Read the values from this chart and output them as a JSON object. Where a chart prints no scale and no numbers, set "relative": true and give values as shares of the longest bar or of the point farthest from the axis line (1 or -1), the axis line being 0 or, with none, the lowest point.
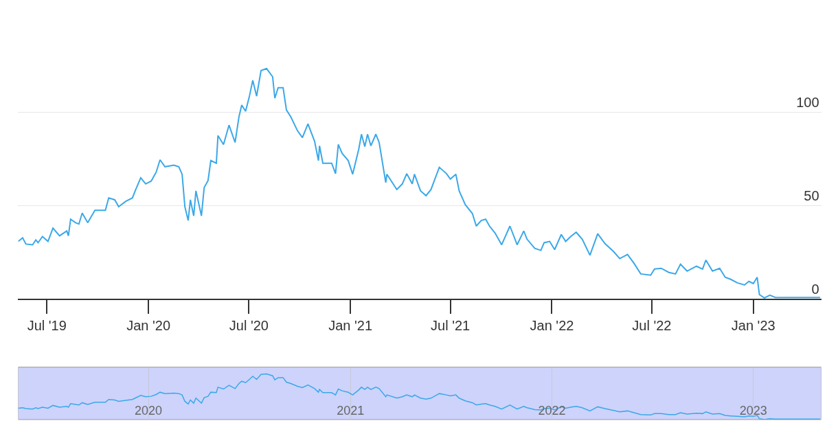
{
  "chart_data": [
    {
      "type": "line",
      "x": [
        "2019-05-10",
        "2019-05-18",
        "2019-05-24",
        "2019-06-05",
        "2019-06-11",
        "2019-06-15",
        "2019-06-23",
        "2019-07-03",
        "2019-07-12",
        "2019-07-24",
        "2019-08-06",
        "2019-08-09",
        "2019-08-13",
        "2019-08-22",
        "2019-08-28",
        "2019-09-03",
        "2019-09-13",
        "2019-09-26",
        "2019-10-15",
        "2019-10-21",
        "2019-11-01",
        "2019-11-08",
        "2019-11-21",
        "2019-12-03",
        "2019-12-08",
        "2019-12-18",
        "2019-12-27",
        "2020-01-06",
        "2020-01-15",
        "2020-01-22",
        "2020-01-31",
        "2020-02-16",
        "2020-02-25",
        "2020-03-02",
        "2020-03-07",
        "2020-03-13",
        "2020-03-17",
        "2020-03-23",
        "2020-03-27",
        "2020-04-06",
        "2020-04-11",
        "2020-04-18",
        "2020-04-23",
        "2020-05-03",
        "2020-05-06",
        "2020-05-16",
        "2020-05-26",
        "2020-06-06",
        "2020-06-13",
        "2020-06-18",
        "2020-06-25",
        "2020-07-02",
        "2020-07-08",
        "2020-07-15",
        "2020-07-23",
        "2020-08-02",
        "2020-08-13",
        "2020-08-17",
        "2020-08-23",
        "2020-09-01",
        "2020-09-07",
        "2020-09-15",
        "2020-09-27",
        "2020-10-06",
        "2020-10-16",
        "2020-10-28",
        "2020-11-04",
        "2020-11-06",
        "2020-11-12",
        "2020-11-28",
        "2020-12-05",
        "2020-12-10",
        "2020-12-17",
        "2020-12-28",
        "2021-01-05",
        "2021-01-16",
        "2021-01-21",
        "2021-01-27",
        "2021-02-01",
        "2021-02-07",
        "2021-02-16",
        "2021-02-22",
        "2021-03-06",
        "2021-03-08",
        "2021-03-26",
        "2021-04-05",
        "2021-04-13",
        "2021-04-23",
        "2021-04-27",
        "2021-05-08",
        "2021-05-18",
        "2021-05-27",
        "2021-06-11",
        "2021-06-24",
        "2021-07-01",
        "2021-07-11",
        "2021-07-17",
        "2021-07-28",
        "2021-08-10",
        "2021-08-17",
        "2021-08-26",
        "2021-09-03",
        "2021-09-10",
        "2021-09-20",
        "2021-10-02",
        "2021-10-17",
        "2021-10-30",
        "2021-11-11",
        "2021-11-17",
        "2021-12-01",
        "2021-12-12",
        "2021-12-18",
        "2021-12-28",
        "2022-01-06",
        "2022-01-18",
        "2022-01-26",
        "2022-02-04",
        "2022-02-14",
        "2022-02-25",
        "2022-03-11",
        "2022-03-25",
        "2022-04-07",
        "2022-04-23",
        "2022-05-04",
        "2022-05-18",
        "2022-05-30",
        "2022-06-11",
        "2022-06-29",
        "2022-07-06",
        "2022-07-18",
        "2022-08-01",
        "2022-08-13",
        "2022-08-22",
        "2022-09-03",
        "2022-09-20",
        "2022-10-01",
        "2022-10-07",
        "2022-10-19",
        "2022-11-01",
        "2022-11-11",
        "2022-11-21",
        "2022-12-03",
        "2022-12-16",
        "2022-12-24",
        "2023-01-01",
        "2023-01-08",
        "2023-01-12",
        "2023-01-21",
        "2023-01-31",
        "2023-02-10",
        "2023-05-02"
      ],
      "series": [
        {
          "color": "#3aa8e8",
          "values": [
            30.7,
            32.6,
            29.3,
            28.9,
            31.5,
            30,
            33.3,
            30.7,
            37.8,
            33.7,
            36.3,
            33.7,
            42.6,
            40.7,
            40,
            45.9,
            40.7,
            47.4,
            47.4,
            54,
            53,
            49.3,
            52.2,
            54,
            57.8,
            64.8,
            61.5,
            63,
            67.8,
            74.4,
            70.7,
            71.5,
            70.7,
            66.7,
            49.3,
            41.9,
            53,
            44.4,
            57.8,
            44.4,
            59.6,
            63.3,
            74,
            72.6,
            87.4,
            82.6,
            93,
            83.7,
            97.4,
            103.7,
            100.4,
            108.5,
            117,
            108.5,
            122.2,
            123.3,
            118.9,
            107.4,
            113,
            113,
            101.1,
            97.4,
            90,
            86.3,
            93.7,
            84.4,
            74,
            81.9,
            72.6,
            72.6,
            67,
            82.6,
            77.8,
            74,
            66.7,
            80,
            88.1,
            81.5,
            88.1,
            81.9,
            88.1,
            83.7,
            62.2,
            66.7,
            58.5,
            61.5,
            67,
            61.5,
            66.7,
            57.8,
            55.2,
            58.5,
            70.4,
            67,
            64.1,
            66.7,
            57.8,
            50.4,
            45.6,
            38.9,
            41.9,
            42.6,
            38.9,
            35.2,
            28.9,
            38.9,
            28.9,
            36.3,
            31.9,
            27,
            25.9,
            30,
            30.7,
            26.3,
            34.4,
            30.7,
            33.3,
            35.6,
            31.9,
            23.3,
            34.8,
            29.6,
            25.2,
            21.5,
            23.7,
            18.9,
            13.3,
            12.6,
            15.9,
            16.3,
            14.1,
            13.3,
            18.5,
            14.8,
            17.4,
            15.9,
            20.7,
            14.8,
            16.3,
            11.5,
            10.4,
            8.5,
            7.4,
            9.3,
            8.1,
            11.5,
            2.2,
            0.4,
            1.9,
            0.7,
            0.7
          ]
        }
      ],
      "xlim": [
        "2019-05-10",
        "2023-05-04"
      ],
      "xticks": [
        {
          "value": "2019-07-01",
          "label": "Jul '19"
        },
        {
          "value": "2020-01-01",
          "label": "Jan '20"
        },
        {
          "value": "2020-07-01",
          "label": "Jul '20"
        },
        {
          "value": "2021-01-01",
          "label": "Jan '21"
        },
        {
          "value": "2021-07-01",
          "label": "Jul '21"
        },
        {
          "value": "2022-01-01",
          "label": "Jan '22"
        },
        {
          "value": "2022-07-01",
          "label": "Jul '22"
        },
        {
          "value": "2023-01-01",
          "label": "Jan '23"
        }
      ],
      "ylim": [
        0,
        160
      ],
      "yticks": [
        0,
        50,
        100
      ],
      "grid": "y"
    },
    {
      "type": "line",
      "relative": true,
      "x": [
        "2019-05-10",
        "2019-05-18",
        "2019-05-24",
        "2019-06-05",
        "2019-06-11",
        "2019-06-15",
        "2019-06-23",
        "2019-07-03",
        "2019-07-12",
        "2019-07-24",
        "2019-08-06",
        "2019-08-09",
        "2019-08-13",
        "2019-08-22",
        "2019-08-28",
        "2019-09-03",
        "2019-09-13",
        "2019-09-26",
        "2019-10-15",
        "2019-10-21",
        "2019-11-01",
        "2019-11-08",
        "2019-11-21",
        "2019-12-03",
        "2019-12-08",
        "2019-12-18",
        "2019-12-27",
        "2020-01-06",
        "2020-01-15",
        "2020-01-22",
        "2020-01-31",
        "2020-02-16",
        "2020-02-25",
        "2020-03-02",
        "2020-03-07",
        "2020-03-13",
        "2020-03-17",
        "2020-03-23",
        "2020-03-27",
        "2020-04-06",
        "2020-04-11",
        "2020-04-18",
        "2020-04-23",
        "2020-05-03",
        "2020-05-06",
        "2020-05-16",
        "2020-05-26",
        "2020-06-06",
        "2020-06-13",
        "2020-06-18",
        "2020-06-25",
        "2020-07-02",
        "2020-07-08",
        "2020-07-15",
        "2020-07-23",
        "2020-08-02",
        "2020-08-13",
        "2020-08-17",
        "2020-08-23",
        "2020-09-01",
        "2020-09-07",
        "2020-09-15",
        "2020-09-27",
        "2020-10-06",
        "2020-10-16",
        "2020-10-28",
        "2020-11-04",
        "2020-11-06",
        "2020-11-12",
        "2020-11-28",
        "2020-12-05",
        "2020-12-10",
        "2020-12-17",
        "2020-12-28",
        "2021-01-05",
        "2021-01-16",
        "2021-01-21",
        "2021-01-27",
        "2021-02-01",
        "2021-02-07",
        "2021-02-16",
        "2021-02-22",
        "2021-03-06",
        "2021-03-08",
        "2021-03-26",
        "2021-04-05",
        "2021-04-13",
        "2021-04-23",
        "2021-04-27",
        "2021-05-08",
        "2021-05-18",
        "2021-05-27",
        "2021-06-11",
        "2021-06-24",
        "2021-07-01",
        "2021-07-11",
        "2021-07-17",
        "2021-07-28",
        "2021-08-10",
        "2021-08-17",
        "2021-08-26",
        "2021-09-03",
        "2021-09-10",
        "2021-09-20",
        "2021-10-02",
        "2021-10-17",
        "2021-10-30",
        "2021-11-11",
        "2021-11-17",
        "2021-12-01",
        "2021-12-12",
        "2021-12-18",
        "2021-12-28",
        "2022-01-06",
        "2022-01-18",
        "2022-01-26",
        "2022-02-04",
        "2022-02-14",
        "2022-02-25",
        "2022-03-11",
        "2022-03-25",
        "2022-04-07",
        "2022-04-23",
        "2022-05-04",
        "2022-05-18",
        "2022-05-30",
        "2022-06-11",
        "2022-06-29",
        "2022-07-06",
        "2022-07-18",
        "2022-08-01",
        "2022-08-13",
        "2022-08-22",
        "2022-09-03",
        "2022-09-20",
        "2022-10-01",
        "2022-10-07",
        "2022-10-19",
        "2022-11-01",
        "2022-11-11",
        "2022-11-21",
        "2022-12-03",
        "2022-12-16",
        "2022-12-24",
        "2023-01-01",
        "2023-01-08",
        "2023-01-12",
        "2023-01-21",
        "2023-01-31",
        "2023-02-10",
        "2023-05-02"
      ],
      "series": [
        {
          "color": "#3aa8e8",
          "values": [
            0.25,
            0.26,
            0.24,
            0.23,
            0.26,
            0.24,
            0.27,
            0.25,
            0.31,
            0.27,
            0.29,
            0.27,
            0.35,
            0.33,
            0.32,
            0.37,
            0.33,
            0.38,
            0.38,
            0.44,
            0.43,
            0.4,
            0.42,
            0.44,
            0.47,
            0.53,
            0.5,
            0.51,
            0.55,
            0.6,
            0.57,
            0.58,
            0.57,
            0.54,
            0.4,
            0.34,
            0.43,
            0.36,
            0.47,
            0.36,
            0.48,
            0.51,
            0.6,
            0.59,
            0.71,
            0.67,
            0.75,
            0.68,
            0.79,
            0.84,
            0.81,
            0.88,
            0.95,
            0.88,
            0.99,
            1,
            0.96,
            0.87,
            0.92,
            0.92,
            0.82,
            0.79,
            0.73,
            0.7,
            0.76,
            0.68,
            0.6,
            0.66,
            0.59,
            0.59,
            0.54,
            0.67,
            0.63,
            0.6,
            0.54,
            0.65,
            0.71,
            0.66,
            0.71,
            0.66,
            0.71,
            0.68,
            0.5,
            0.54,
            0.47,
            0.5,
            0.54,
            0.5,
            0.54,
            0.47,
            0.45,
            0.47,
            0.57,
            0.54,
            0.52,
            0.54,
            0.47,
            0.41,
            0.37,
            0.32,
            0.34,
            0.35,
            0.32,
            0.29,
            0.23,
            0.32,
            0.23,
            0.29,
            0.26,
            0.22,
            0.21,
            0.24,
            0.25,
            0.21,
            0.28,
            0.25,
            0.27,
            0.29,
            0.26,
            0.19,
            0.28,
            0.24,
            0.2,
            0.17,
            0.19,
            0.15,
            0.11,
            0.1,
            0.13,
            0.13,
            0.11,
            0.11,
            0.15,
            0.12,
            0.14,
            0.13,
            0.17,
            0.12,
            0.13,
            0.09,
            0.08,
            0.07,
            0.06,
            0.08,
            0.07,
            0.09,
            0.02,
            0,
            0.02,
            0.01,
            0.01
          ]
        }
      ],
      "xlim": [
        "2019-05-10",
        "2023-05-04"
      ],
      "xticks": [
        {
          "value": "2020-01-01",
          "label": "2020"
        },
        {
          "value": "2021-01-01",
          "label": "2021"
        },
        {
          "value": "2022-01-01",
          "label": "2022"
        },
        {
          "value": "2023-01-01",
          "label": "2023"
        }
      ],
      "tick_labels": "x",
      "grid": "x",
      "bands": [
        {
          "axis": "x",
          "from": "2019-05-10",
          "to": "2023-05-04",
          "color": "#cdd3fb"
        }
      ]
    }
  ]
}
